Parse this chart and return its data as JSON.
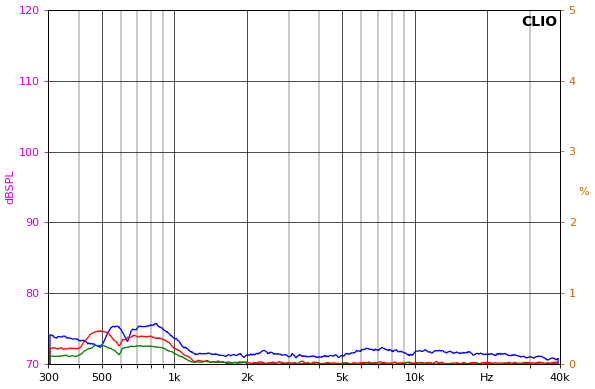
{
  "ylabel_left": "dBSPL",
  "ylabel_right": "%",
  "xlim": [
    300,
    40000
  ],
  "ylim_left": [
    70,
    120
  ],
  "ylim_right": [
    0,
    5
  ],
  "yticks_left": [
    70,
    80,
    90,
    100,
    110,
    120
  ],
  "yticks_right": [
    0,
    1,
    2,
    3,
    4,
    5
  ],
  "xtick_vals": [
    300,
    500,
    1000,
    2000,
    5000,
    10000,
    20000,
    40000
  ],
  "xticklabels": [
    "300",
    "500",
    "1k",
    "2k",
    "5k",
    "10k",
    "Hz",
    "40k"
  ],
  "background_color": "#ffffff",
  "grid_color": "#000000",
  "line_colors": [
    "#0000ff",
    "#ff0000",
    "#008000"
  ],
  "left_label_color": "#cc00cc",
  "right_label_color": "#cc6600",
  "clio_label": "CLIO",
  "clio_fontsize": 10
}
